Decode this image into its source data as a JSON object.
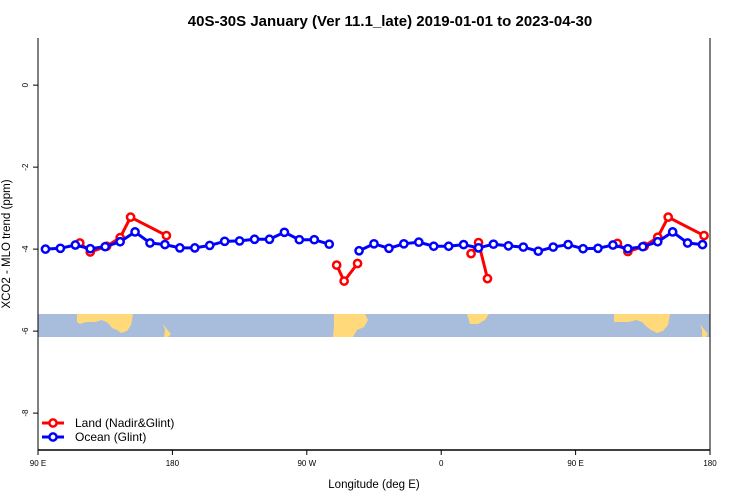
{
  "chart_data": {
    "type": "line",
    "title": "40S-30S January (Ver 11.1_late)   2019-01-01 to 2023-04-30",
    "xlabel": "Longitude (deg E)",
    "ylabel": "XCO2 - MLO trend (ppm)",
    "xlim": [
      90,
      540
    ],
    "ylim": [
      -8.9,
      1.15
    ],
    "x_ticks": [
      90,
      180,
      270,
      360,
      450,
      540
    ],
    "x_tick_labels": [
      "90 E",
      "180",
      "90 W",
      "0",
      "90 E",
      "180"
    ],
    "y_ticks": [
      0,
      -2,
      -4,
      -6,
      -8
    ],
    "y_tick_labels": [
      "0",
      "-2",
      "-4",
      "-6",
      "-8"
    ],
    "grid": false,
    "legend_position": "bottom-left",
    "background_map": "continents 40S-30S band near y=-6",
    "series": [
      {
        "name": "Land (Nadir&Glint)",
        "color": "#ff0000",
        "segments": [
          {
            "x": [
              118,
              125,
              136,
              145,
              152,
              176
            ],
            "y": [
              -3.85,
              -4.07,
              -3.93,
              -3.72,
              -3.22,
              -3.67
            ]
          },
          {
            "x": [
              290,
              295,
              304
            ],
            "y": [
              -4.39,
              -4.78,
              -4.35
            ]
          },
          {
            "x": [
              380,
              385,
              391
            ],
            "y": [
              -4.11,
              -3.84,
              -4.72
            ]
          },
          {
            "x": [
              478,
              485,
              496,
              505,
              512,
              536
            ],
            "y": [
              -3.86,
              -4.06,
              -3.93,
              -3.71,
              -3.22,
              -3.67
            ]
          }
        ]
      },
      {
        "name": "Ocean (Glint)",
        "color": "#0000ff",
        "segments": [
          {
            "x": [
              95,
              105,
              115,
              125,
              135,
              145,
              155,
              165,
              175,
              185,
              195,
              205,
              215,
              225,
              235,
              245,
              255,
              265,
              275,
              285
            ],
            "y": [
              -4.0,
              -3.98,
              -3.9,
              -3.99,
              -3.94,
              -3.82,
              -3.58,
              -3.85,
              -3.89,
              -3.97,
              -3.97,
              -3.91,
              -3.81,
              -3.8,
              -3.76,
              -3.76,
              -3.59,
              -3.77,
              -3.77,
              -3.88
            ]
          },
          {
            "x": [
              305,
              315,
              325,
              335,
              345,
              355,
              365,
              375,
              385,
              395,
              405,
              415,
              425,
              435,
              445,
              455,
              465,
              475,
              485,
              495,
              505,
              515,
              525,
              535
            ],
            "y": [
              -4.04,
              -3.87,
              -3.98,
              -3.87,
              -3.83,
              -3.93,
              -3.93,
              -3.89,
              -3.97,
              -3.88,
              -3.92,
              -3.95,
              -4.05,
              -3.95,
              -3.89,
              -3.99,
              -3.98,
              -3.9,
              -3.99,
              -3.94,
              -3.82,
              -3.58,
              -3.85,
              -3.89
            ]
          }
        ]
      }
    ],
    "colors": {
      "ocean": "#a7bddb",
      "land": "#ffd97a"
    }
  }
}
